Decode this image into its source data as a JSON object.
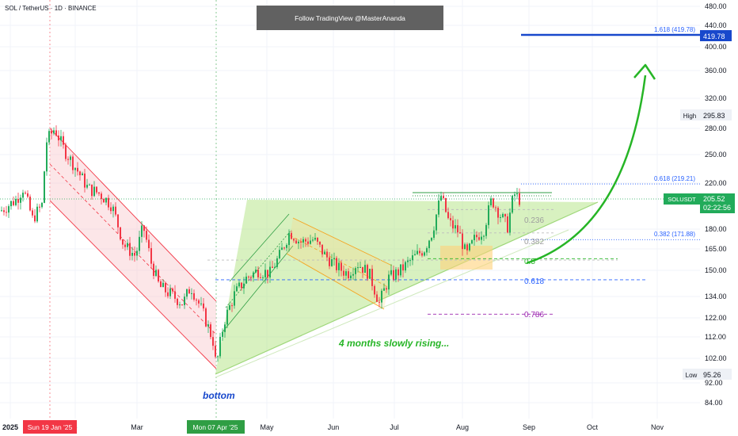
{
  "header": {
    "symbol_title": "SOL / TetherUS · 1D · BINANCE",
    "watermark_banner": "Follow TradingView @MasterAnanda"
  },
  "chart_data": {
    "type": "candlestick",
    "price_axis": {
      "ticks": [
        "480.00",
        "440.00",
        "400.00",
        "360.00",
        "320.00",
        "280.00",
        "250.00",
        "220.00",
        "180.00",
        "165.00",
        "150.00",
        "134.00",
        "122.00",
        "112.00",
        "102.00",
        "92.00",
        "84.00"
      ],
      "scale": "log",
      "range": [
        78,
        520
      ]
    },
    "time_axis": {
      "ticks": [
        "2025",
        "b",
        "Mar",
        "May",
        "Jun",
        "Jul",
        "Aug",
        "Sep",
        "Oct",
        "Nov"
      ],
      "highlight_labels": [
        {
          "text": "Sun 19 Jan '25",
          "color": "#f23645"
        },
        {
          "text": "Mon 07 Apr '25",
          "color": "#2f9e44"
        }
      ]
    },
    "price_labels": {
      "high": {
        "label": "High",
        "value": "295.83"
      },
      "low": {
        "label": "Low",
        "value": "95.26"
      },
      "current": {
        "symbol": "SOLUSDT",
        "price": "205.52",
        "countdown": "02:22:56"
      },
      "target": {
        "value": "419.78"
      }
    },
    "fib_levels": [
      {
        "label": "1.618 (419.78)",
        "price": 419.78
      },
      {
        "label": "0.618 (219.21)",
        "price": 219.21
      },
      {
        "label": "0.382 (171.88)",
        "price": 171.88
      },
      {
        "label": "0.236",
        "price": 196
      },
      {
        "label": "0.382",
        "price": 177
      },
      {
        "label": "0.5",
        "price": 158
      },
      {
        "label": "0.618",
        "price": 144
      },
      {
        "label": "0.786",
        "price": 124
      }
    ],
    "annotations": [
      "4 months slowly rising...",
      "bottom"
    ],
    "colors": {
      "up": "#22ab5a",
      "down": "#f23645",
      "fib_blue": "#2962ff",
      "target_blue": "#1848cc",
      "purple": "#9c27b0",
      "arrow_green": "#26b526"
    },
    "candles": []
  }
}
